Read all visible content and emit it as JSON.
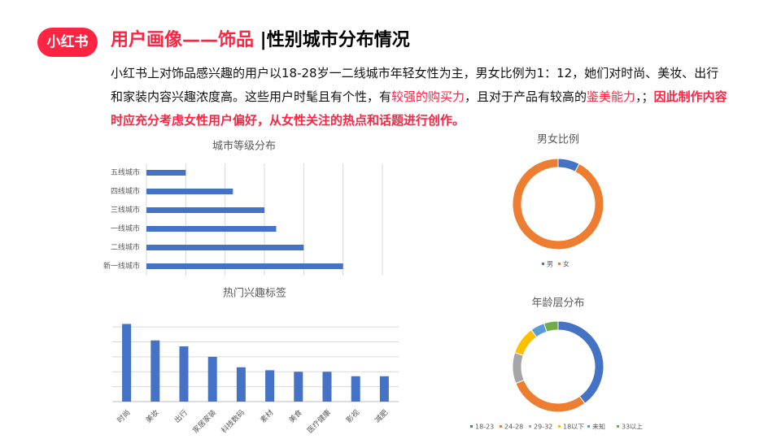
{
  "header": {
    "logo": "小红书",
    "title_main": "用户画像——饰品",
    "title_sub": " |性别城市分布情况",
    "title_main_color": "#ff2442"
  },
  "paragraph": [
    {
      "text": "小红书上对饰品感兴趣的用户以18-28岁一二线城市年轻女性为主，男女比例为1：12，她们对时尚、美妆、出行和家装内容兴趣浓度高。这些用户时髦且有个性，有",
      "color": "#111111"
    },
    {
      "text": "较强的购买力",
      "color": "#ff2442"
    },
    {
      "text": "，且对于产品有较高的",
      "color": "#111111"
    },
    {
      "text": "鉴美能力",
      "color": "#ff2442"
    },
    {
      "text": "，；",
      "color": "#111111"
    },
    {
      "text": "因此制作内容时应充分考虑女性用户偏好，从女性关注的热点和话题进行创作。",
      "color": "#ff2442"
    }
  ],
  "chart_data": [
    {
      "type": "hbar",
      "title": "城市等级分布",
      "categories": [
        "五线城市",
        "四线城市",
        "三线城市",
        "一线城市",
        "二线城市",
        "新一线城市"
      ],
      "values": [
        1,
        2.2,
        3,
        3.3,
        4,
        5
      ],
      "color": "#4472c4",
      "xlim": [
        0,
        6
      ],
      "xticks": [
        0,
        1,
        2,
        3,
        4,
        5,
        6
      ],
      "grid": true
    },
    {
      "type": "bar",
      "title": "热门兴趣标签",
      "categories": [
        "时尚",
        "美妆",
        "出行",
        "家居家装",
        "科技数码",
        "素材",
        "美食",
        "医疗健康",
        "影视",
        "减肥"
      ],
      "values": [
        5.2,
        4.1,
        3.7,
        3,
        2.3,
        2.1,
        2,
        2,
        1.7,
        1.7
      ],
      "color": "#4472c4",
      "ylim": [
        0,
        5.5
      ],
      "yticks": [
        0,
        1,
        2,
        3,
        4,
        5
      ],
      "grid": true
    },
    {
      "type": "donut",
      "title": "男女比例",
      "categories": [
        "男",
        "女"
      ],
      "values": [
        7.7,
        92.3
      ],
      "colors": [
        "#4472c4",
        "#ed7d31"
      ],
      "legend": "bottom"
    },
    {
      "type": "donut",
      "title": "年龄层分布",
      "categories": [
        "18-23",
        "24-28",
        "29-32",
        "18以下",
        "未知",
        "33以上"
      ],
      "values": [
        40,
        29,
        11,
        10,
        5,
        5
      ],
      "colors": [
        "#4472c4",
        "#ed7d31",
        "#a5a5a5",
        "#ffc000",
        "#5b9bd5",
        "#70ad47"
      ],
      "legend": "bottom"
    }
  ]
}
